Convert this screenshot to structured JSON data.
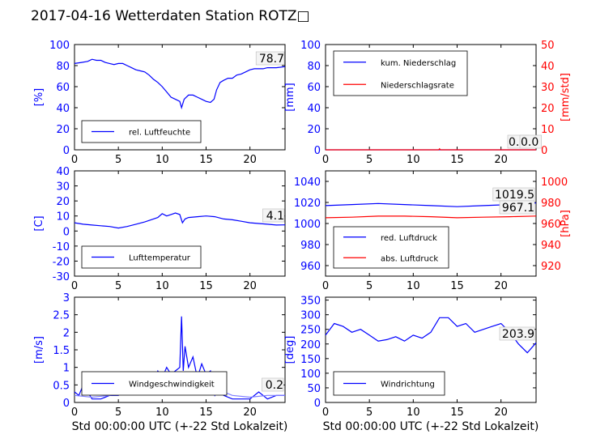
{
  "title": "2017-04-16 Wetterdaten Station ROTZ□",
  "colors": {
    "blue": "#0000ff",
    "red": "#ff0000",
    "lightblue": "#7f7fff",
    "black": "#000000"
  },
  "chart_data": [
    {
      "type": "line",
      "id": "humidity",
      "xlim": [
        0,
        24
      ],
      "ylim": [
        0,
        100
      ],
      "xticks": [
        0,
        5,
        10,
        15,
        20
      ],
      "yticks": [
        0,
        20,
        40,
        60,
        80,
        100
      ],
      "ylabel": "[%]",
      "xlabel": "",
      "legend": [
        "rel. Luftfeuchte"
      ],
      "legend_placement": "lower-left",
      "annotations": [
        "78.7"
      ],
      "series": [
        {
          "name": "rel. Luftfeuchte",
          "color": "#0000ff",
          "x": [
            0,
            0.8,
            1.5,
            2,
            2.5,
            3,
            3.5,
            4,
            4.5,
            5,
            5.5,
            6,
            6.5,
            7,
            7.5,
            8,
            8.5,
            9,
            9.5,
            10,
            10.5,
            11,
            11.5,
            12,
            12.2,
            12.5,
            13,
            13.5,
            14,
            14.5,
            15,
            15.5,
            15.9,
            16.2,
            16.6,
            17,
            17.5,
            18,
            18.5,
            19,
            19.5,
            20,
            20.5,
            21,
            21.5,
            22,
            22.5,
            23,
            24
          ],
          "y": [
            82,
            83,
            84,
            86,
            85,
            85,
            83,
            82,
            81,
            82,
            82,
            80,
            78,
            76,
            75,
            74,
            71,
            67,
            64,
            60,
            55,
            50,
            48,
            46,
            40,
            48,
            52,
            52,
            50,
            48,
            46,
            45,
            48,
            57,
            64,
            66,
            68,
            68,
            71,
            72,
            74,
            76,
            77,
            77,
            77,
            78,
            78,
            78,
            79
          ]
        }
      ]
    },
    {
      "type": "line",
      "id": "precip",
      "xlim": [
        0,
        24
      ],
      "ylim": [
        0,
        100
      ],
      "ylim_right": [
        0,
        50
      ],
      "xticks": [
        0,
        5,
        10,
        15,
        20
      ],
      "yticks": [
        0,
        20,
        40,
        60,
        80,
        100
      ],
      "yticks_right": [
        0,
        10,
        20,
        30,
        40,
        50
      ],
      "ylabel": "[mm]",
      "ylabel_right": "[mm/std]",
      "xlabel": "",
      "legend": [
        "kum. Niederschlag",
        "Niederschlagsrate"
      ],
      "legend_placement": "upper-left",
      "annotations": [
        "0.0",
        "0.0"
      ],
      "series": [
        {
          "name": "kum. Niederschlag",
          "color": "#0000ff",
          "x": [
            0,
            24
          ],
          "y": [
            0,
            0
          ]
        },
        {
          "name": "Niederschlagsrate",
          "color": "#ff0000",
          "axis": "right",
          "x": [
            0,
            12.9,
            13,
            13.1,
            24
          ],
          "y": [
            0,
            0,
            0.5,
            0,
            0
          ]
        }
      ]
    },
    {
      "type": "line",
      "id": "temperature",
      "xlim": [
        0,
        24
      ],
      "ylim": [
        -30,
        40
      ],
      "xticks": [
        0,
        5,
        10,
        15,
        20
      ],
      "yticks": [
        -30,
        -20,
        -10,
        0,
        10,
        20,
        30,
        40
      ],
      "ylabel": "[C]",
      "xlabel": "",
      "legend": [
        "Lufttemperatur"
      ],
      "legend_placement": "lower-left",
      "annotations": [
        "4.1"
      ],
      "series": [
        {
          "name": "Lufttemperatur",
          "color": "#0000ff",
          "x": [
            0,
            1,
            2,
            3,
            4,
            5,
            6,
            7,
            8,
            9,
            9.5,
            10,
            10.5,
            11,
            11.5,
            12,
            12.3,
            12.6,
            13,
            14,
            15,
            16,
            17,
            18,
            19,
            20,
            21,
            22,
            23,
            24
          ],
          "y": [
            5.5,
            4.5,
            4,
            3.5,
            3,
            2,
            3,
            4.5,
            6,
            8,
            9,
            11.5,
            10,
            11,
            12,
            11,
            5.5,
            8,
            9,
            9.5,
            10,
            9.5,
            8,
            7.5,
            6.5,
            5.5,
            5,
            4.5,
            4,
            4.1
          ]
        }
      ]
    },
    {
      "type": "line",
      "id": "pressure",
      "xlim": [
        0,
        24
      ],
      "ylim": [
        950,
        1050
      ],
      "ylim_right": [
        910,
        1010
      ],
      "xticks": [
        0,
        5,
        10,
        15,
        20
      ],
      "yticks": [
        960,
        980,
        1000,
        1020,
        1040
      ],
      "yticks_right": [
        920,
        940,
        960,
        980,
        1000
      ],
      "ylabel": "",
      "ylabel_right": "[hPa]",
      "xlabel": "",
      "legend": [
        "red. Luftdruck",
        "abs. Luftdruck"
      ],
      "legend_placement": "lower-left",
      "annotations": [
        "1019.5",
        "967.1"
      ],
      "series": [
        {
          "name": "red. Luftdruck",
          "color": "#0000ff",
          "x": [
            0,
            3,
            6,
            9,
            12,
            15,
            18,
            21,
            24
          ],
          "y": [
            1017,
            1018,
            1019,
            1018,
            1017,
            1016,
            1017,
            1018,
            1019.5
          ]
        },
        {
          "name": "abs. Luftdruck",
          "color": "#ff0000",
          "axis": "right",
          "x": [
            0,
            3,
            6,
            9,
            12,
            15,
            18,
            21,
            24
          ],
          "y": [
            965.5,
            966,
            967,
            967,
            966.5,
            965.5,
            966,
            966.5,
            967.1
          ]
        }
      ]
    },
    {
      "type": "line",
      "id": "wind",
      "xlim": [
        0,
        24
      ],
      "ylim": [
        0,
        3
      ],
      "xticks": [
        0,
        5,
        10,
        15,
        20
      ],
      "yticks": [
        0,
        0.5,
        1.0,
        1.5,
        2.0,
        2.5,
        3.0
      ],
      "ylabel": "[m/s]",
      "xlabel": "Std 00:00:00 UTC (+-22 Std Lokalzeit)",
      "legend": [
        "Windgeschwindigkeit"
      ],
      "legend_placement": "lower-left",
      "annotations": [
        "0.2"
      ],
      "series": [
        {
          "name": "Windgeschwindigkeit",
          "color": "#0000ff",
          "x": [
            0,
            0.5,
            1,
            2,
            3,
            4,
            5,
            6,
            7,
            7.5,
            8,
            8.5,
            9,
            9.5,
            10,
            10.5,
            11,
            11.5,
            12,
            12.2,
            12.4,
            12.6,
            13,
            13.5,
            14,
            14.5,
            15,
            15.5,
            16,
            16.5,
            17,
            18,
            19,
            20,
            21,
            22,
            23,
            24
          ],
          "y": [
            0.3,
            0.2,
            0.5,
            0.1,
            0.1,
            0.2,
            0.2,
            0.4,
            0.6,
            0.4,
            0.7,
            0.8,
            0.6,
            0.9,
            0.7,
            1.0,
            0.8,
            0.9,
            1.0,
            2.45,
            0.9,
            1.6,
            1.0,
            1.3,
            0.7,
            1.1,
            0.8,
            0.9,
            0.2,
            0.4,
            0.2,
            0.1,
            0.1,
            0.1,
            0.3,
            0.1,
            0.2,
            0.2
          ]
        },
        {
          "name": "",
          "color": "#7f7fff",
          "x": [
            0,
            2,
            4,
            6,
            8,
            10,
            12,
            14,
            16,
            18,
            20,
            22,
            24
          ],
          "y": [
            0.2,
            0.15,
            0.2,
            0.35,
            0.55,
            0.7,
            0.8,
            0.7,
            0.4,
            0.2,
            0.15,
            0.2,
            0.2
          ]
        }
      ]
    },
    {
      "type": "line",
      "id": "winddir",
      "xlim": [
        0,
        24
      ],
      "ylim": [
        0,
        360
      ],
      "xticks": [
        0,
        5,
        10,
        15,
        20
      ],
      "yticks": [
        0,
        50,
        100,
        150,
        200,
        250,
        300,
        350
      ],
      "ylabel": "[deg]",
      "xlabel": "Std 00:00:00 UTC (+-22 Std Lokalzeit)",
      "legend": [
        "Windrichtung"
      ],
      "legend_placement": "lower-left",
      "annotations": [
        "203.9"
      ],
      "series": [
        {
          "name": "Windrichtung",
          "color": "#0000ff",
          "x": [
            0,
            1,
            2,
            3,
            4,
            5,
            6,
            7,
            8,
            9,
            10,
            11,
            12,
            13,
            14,
            15,
            16,
            17,
            18,
            19,
            20,
            21,
            22,
            23,
            24
          ],
          "y": [
            230,
            270,
            260,
            240,
            250,
            230,
            210,
            215,
            225,
            210,
            230,
            220,
            240,
            290,
            290,
            260,
            270,
            240,
            250,
            260,
            270,
            240,
            200,
            170,
            204
          ]
        }
      ]
    }
  ]
}
